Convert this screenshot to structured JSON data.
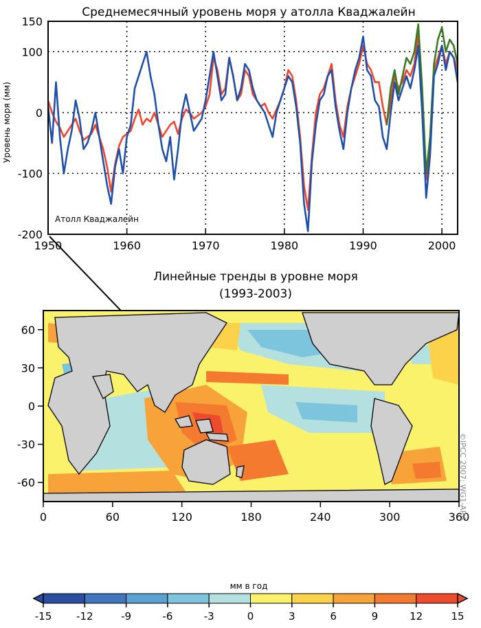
{
  "credit": "©IPCC 2007: WG1-AR4",
  "chart_data": [
    {
      "type": "line",
      "title": "Среднемесячный уровень моря у атолла Кваджалейн",
      "ylabel": "Уровень моря (мм)",
      "xlabel": "",
      "annotation": "Атолл Кваджалейн",
      "xlim": [
        1950,
        2002
      ],
      "ylim": [
        -200,
        150
      ],
      "xticks": [
        1950,
        1960,
        1970,
        1980,
        1990,
        2000
      ],
      "yticks": [
        150,
        100,
        0,
        -100,
        -200
      ],
      "grid": "dotted",
      "colors": {
        "blue": "#1f4fa8",
        "red": "#f0452c",
        "green": "#3a7a22"
      },
      "series": [
        {
          "color": "#f0452c",
          "x": [
            1950.0,
            1950.5,
            1951.0,
            1951.5,
            1952.0,
            1952.5,
            1953.0,
            1953.5,
            1954.0,
            1954.5,
            1955.0,
            1955.5,
            1956.0,
            1956.5,
            1957.0,
            1957.5,
            1958.0,
            1958.5,
            1959.0,
            1959.5,
            1960.0,
            1960.5,
            1961.0,
            1961.5,
            1962.0,
            1962.5,
            1963.0,
            1963.5,
            1964.0,
            1964.5,
            1965.0,
            1965.5,
            1966.0,
            1966.5,
            1967.0,
            1967.5,
            1968.0,
            1968.5,
            1969.0,
            1969.5,
            1970.0,
            1970.5,
            1971.0,
            1971.5,
            1972.0,
            1972.5,
            1973.0,
            1973.5,
            1974.0,
            1974.5,
            1975.0,
            1975.5,
            1976.0,
            1976.5,
            1977.0,
            1977.5,
            1978.0,
            1978.5,
            1979.0,
            1979.5,
            1980.0,
            1980.5,
            1981.0,
            1981.5,
            1982.0,
            1982.5,
            1983.0,
            1983.5,
            1984.0,
            1984.5,
            1985.0,
            1985.5,
            1986.0,
            1986.5,
            1987.0,
            1987.5,
            1988.0,
            1988.5,
            1989.0,
            1989.5,
            1990.0,
            1990.5,
            1991.0,
            1991.5,
            1992.0,
            1992.5,
            1993.0,
            1993.5,
            1994.0,
            1994.5,
            1995.0,
            1995.5,
            1996.0,
            1996.5,
            1997.0,
            1997.5,
            1998.0,
            1998.5,
            1999.0,
            1999.5,
            2000.0,
            2000.5,
            2001.0,
            2001.5,
            2002.0
          ],
          "y": [
            20,
            0,
            -15,
            -25,
            -40,
            -30,
            -20,
            -10,
            -30,
            -45,
            -40,
            -35,
            -20,
            -40,
            -60,
            -90,
            -130,
            -85,
            -55,
            -40,
            -35,
            -30,
            -10,
            5,
            -20,
            -10,
            -15,
            0,
            -20,
            -40,
            -30,
            -20,
            -15,
            -35,
            -10,
            5,
            0,
            -10,
            -5,
            0,
            10,
            30,
            90,
            70,
            30,
            40,
            90,
            60,
            20,
            30,
            70,
            60,
            30,
            20,
            10,
            15,
            0,
            -10,
            5,
            20,
            40,
            70,
            60,
            20,
            -40,
            -120,
            -160,
            -70,
            0,
            30,
            40,
            60,
            80,
            20,
            -20,
            -40,
            10,
            40,
            60,
            80,
            110,
            80,
            70,
            50,
            50,
            10,
            -20,
            20,
            60,
            40,
            50,
            70,
            60,
            80,
            130,
            20,
            -110,
            -60,
            70,
            90,
            110,
            80,
            100,
            90,
            70
          ]
        },
        {
          "color": "#3a7a22",
          "x": [
            1993.0,
            1993.5,
            1994.0,
            1994.5,
            1995.0,
            1995.5,
            1996.0,
            1996.5,
            1997.0,
            1997.5,
            1998.0,
            1998.5,
            1999.0,
            1999.5,
            2000.0,
            2000.5,
            2001.0,
            2001.5,
            2002.0
          ],
          "y": [
            -20,
            40,
            70,
            30,
            60,
            90,
            80,
            100,
            145,
            40,
            -100,
            -40,
            80,
            120,
            140,
            100,
            120,
            110,
            80
          ]
        },
        {
          "color": "#1f4fa8",
          "x": [
            1950.0,
            1950.5,
            1951.0,
            1951.5,
            1952.0,
            1952.5,
            1953.0,
            1953.5,
            1954.0,
            1954.5,
            1955.0,
            1955.5,
            1956.0,
            1956.5,
            1957.0,
            1957.5,
            1958.0,
            1958.5,
            1959.0,
            1959.5,
            1960.0,
            1960.5,
            1961.0,
            1961.5,
            1962.0,
            1962.5,
            1963.0,
            1963.5,
            1964.0,
            1964.5,
            1965.0,
            1965.5,
            1966.0,
            1966.5,
            1967.0,
            1967.5,
            1968.0,
            1968.5,
            1969.0,
            1969.5,
            1970.0,
            1970.5,
            1971.0,
            1971.5,
            1972.0,
            1972.5,
            1973.0,
            1973.5,
            1974.0,
            1974.5,
            1975.0,
            1975.5,
            1976.0,
            1976.5,
            1977.0,
            1977.5,
            1978.0,
            1978.5,
            1979.0,
            1979.5,
            1980.0,
            1980.5,
            1981.0,
            1981.5,
            1982.0,
            1982.5,
            1983.0,
            1983.5,
            1984.0,
            1984.5,
            1985.0,
            1985.5,
            1986.0,
            1986.5,
            1987.0,
            1987.5,
            1988.0,
            1988.5,
            1989.0,
            1989.5,
            1990.0,
            1990.5,
            1991.0,
            1991.5,
            1992.0,
            1992.5,
            1993.0,
            1993.5,
            1994.0,
            1994.5,
            1995.0,
            1995.5,
            1996.0,
            1996.5,
            1997.0,
            1997.5,
            1998.0,
            1998.5,
            1999.0,
            1999.5,
            2000.0,
            2000.5,
            2001.0,
            2001.5,
            2002.0
          ],
          "y": [
            10,
            -50,
            50,
            -40,
            -100,
            -60,
            -30,
            20,
            -10,
            -60,
            -50,
            -30,
            0,
            -40,
            -80,
            -120,
            -150,
            -90,
            -60,
            -100,
            -40,
            -20,
            40,
            60,
            80,
            100,
            60,
            30,
            -20,
            -60,
            -80,
            -40,
            -110,
            -60,
            0,
            30,
            0,
            -30,
            -20,
            -10,
            20,
            60,
            100,
            60,
            20,
            30,
            90,
            60,
            20,
            40,
            80,
            70,
            40,
            20,
            10,
            0,
            -20,
            -40,
            0,
            20,
            40,
            60,
            50,
            10,
            -50,
            -150,
            -195,
            -80,
            -20,
            20,
            30,
            60,
            70,
            10,
            -30,
            -60,
            0,
            40,
            70,
            90,
            125,
            70,
            60,
            20,
            10,
            -40,
            -60,
            0,
            50,
            20,
            40,
            60,
            40,
            70,
            110,
            0,
            -140,
            -70,
            60,
            80,
            110,
            70,
            100,
            90,
            50
          ]
        }
      ]
    },
    {
      "type": "heatmap",
      "title": "Линейные тренды в уровне моря",
      "subtitle": "(1993-2003)",
      "xlabel": "",
      "ylabel": "",
      "xlim": [
        0,
        360
      ],
      "ylim": [
        -75,
        75
      ],
      "xticks": [
        0,
        60,
        120,
        180,
        240,
        300,
        360
      ],
      "yticks": [
        60,
        30,
        0,
        -30,
        -60
      ],
      "colorbar": {
        "label": "мм в год",
        "ticks": [
          -15,
          -12,
          -9,
          -6,
          -3,
          0,
          3,
          6,
          9,
          12,
          15
        ],
        "colors": [
          "#2a4fa0",
          "#3f76bd",
          "#5aa2d2",
          "#7cc5dd",
          "#b5e0e0",
          "#fbf26c",
          "#fcd24b",
          "#f8a23a",
          "#f47a30",
          "#ee4a2c"
        ]
      }
    }
  ]
}
